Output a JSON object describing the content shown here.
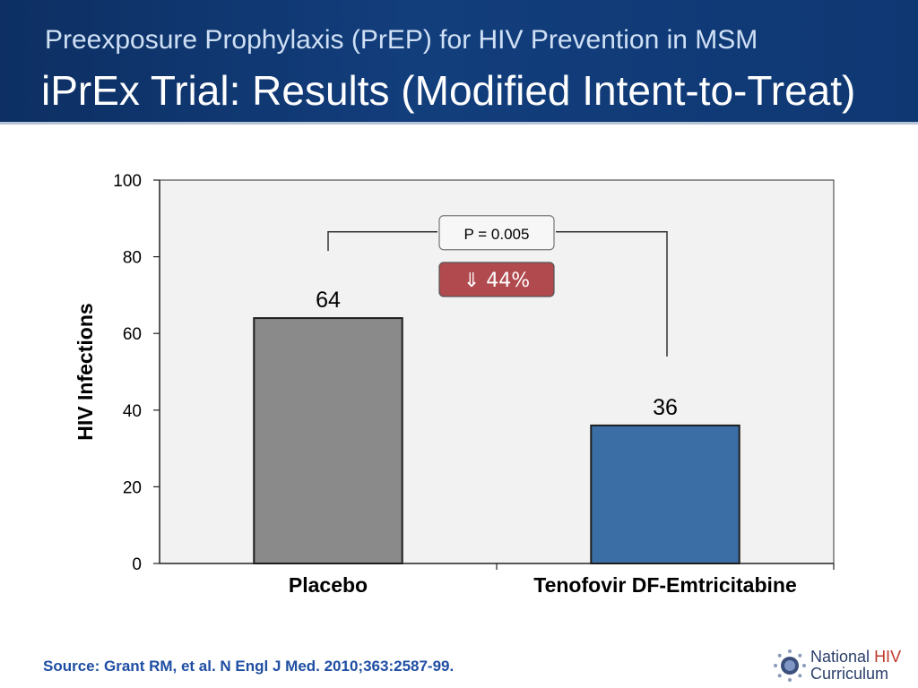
{
  "header": {
    "subtitle": "Preexposure Prophylaxis (PrEP) for HIV Prevention in MSM",
    "title": "iPrEx Trial: Results (Modified Intent-to-Treat)"
  },
  "chart_data": {
    "type": "bar",
    "categories": [
      "Placebo",
      "Tenofovir DF-Emtricitabine"
    ],
    "values": [
      64,
      36
    ],
    "data_labels": [
      "64",
      "36"
    ],
    "ylabel": "HIV Infections",
    "ylim": [
      0,
      100
    ],
    "yticks": [
      0,
      20,
      40,
      60,
      80,
      100
    ],
    "grid": false,
    "bar_colors": [
      "#8a8a8a",
      "#3a6ea5"
    ],
    "plot_background": "#f2f2f2",
    "annotations": {
      "p_value": "P = 0.005",
      "reduction": "⇓ 44%",
      "reduction_color": "#b04a4e"
    }
  },
  "footer": {
    "source": "Source: Grant RM, et al.  N Engl J Med. 2010;363:2587-99.",
    "logo_line1_a": "National",
    "logo_line1_b": "HIV",
    "logo_line2": "Curriculum"
  }
}
